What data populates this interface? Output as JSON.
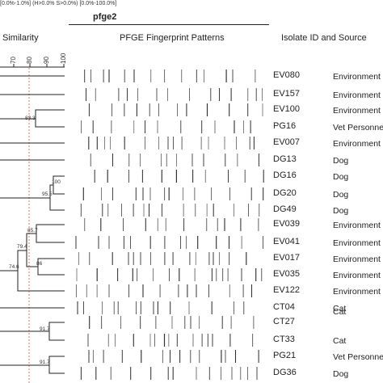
{
  "header": {
    "params": "[0.0%-1.0%] (H>0.0% S>0.0%) [0.0%-100.0%]",
    "analysis_name": "pfge2"
  },
  "columns": {
    "similarity": "Similarity",
    "patterns": "PFGE Fingerprint Patterns",
    "isolate": "Isolate ID and Source"
  },
  "scale": {
    "ticks": [
      "70",
      "80",
      "90",
      "100"
    ]
  },
  "node_labels": {
    "n1": "83.3",
    "n2": "100",
    "n3": "95.5",
    "n4": "85.7",
    "n5": "79.4",
    "n6": "86",
    "n7": "74.6",
    "n8": "91.7",
    "n9": "91.7"
  },
  "isolates": [
    {
      "id": "EV080",
      "source": "Environment"
    },
    {
      "id": "EV157",
      "source": "Environment"
    },
    {
      "id": "EV100",
      "source": "Environment"
    },
    {
      "id": "PG16",
      "source": "Vet Personnel"
    },
    {
      "id": "EV007",
      "source": "Environment"
    },
    {
      "id": "DG13",
      "source": "Dog"
    },
    {
      "id": "DG16",
      "source": "Dog"
    },
    {
      "id": "DG20",
      "source": "Dog"
    },
    {
      "id": "DG49",
      "source": "Dog"
    },
    {
      "id": "EV039",
      "source": "Environment"
    },
    {
      "id": "EV041",
      "source": "Environment"
    },
    {
      "id": "EV017",
      "source": "Environment"
    },
    {
      "id": "EV035",
      "source": "Environment"
    },
    {
      "id": "EV122",
      "source": "Environment"
    },
    {
      "id": "CT04",
      "source": "Cat"
    },
    {
      "id": "CT27",
      "source": "Cat"
    },
    {
      "id": "CT33",
      "source": "Cat"
    },
    {
      "id": "PG21",
      "source": "Vet Personnel"
    },
    {
      "id": "DG36",
      "source": "Dog"
    }
  ]
}
